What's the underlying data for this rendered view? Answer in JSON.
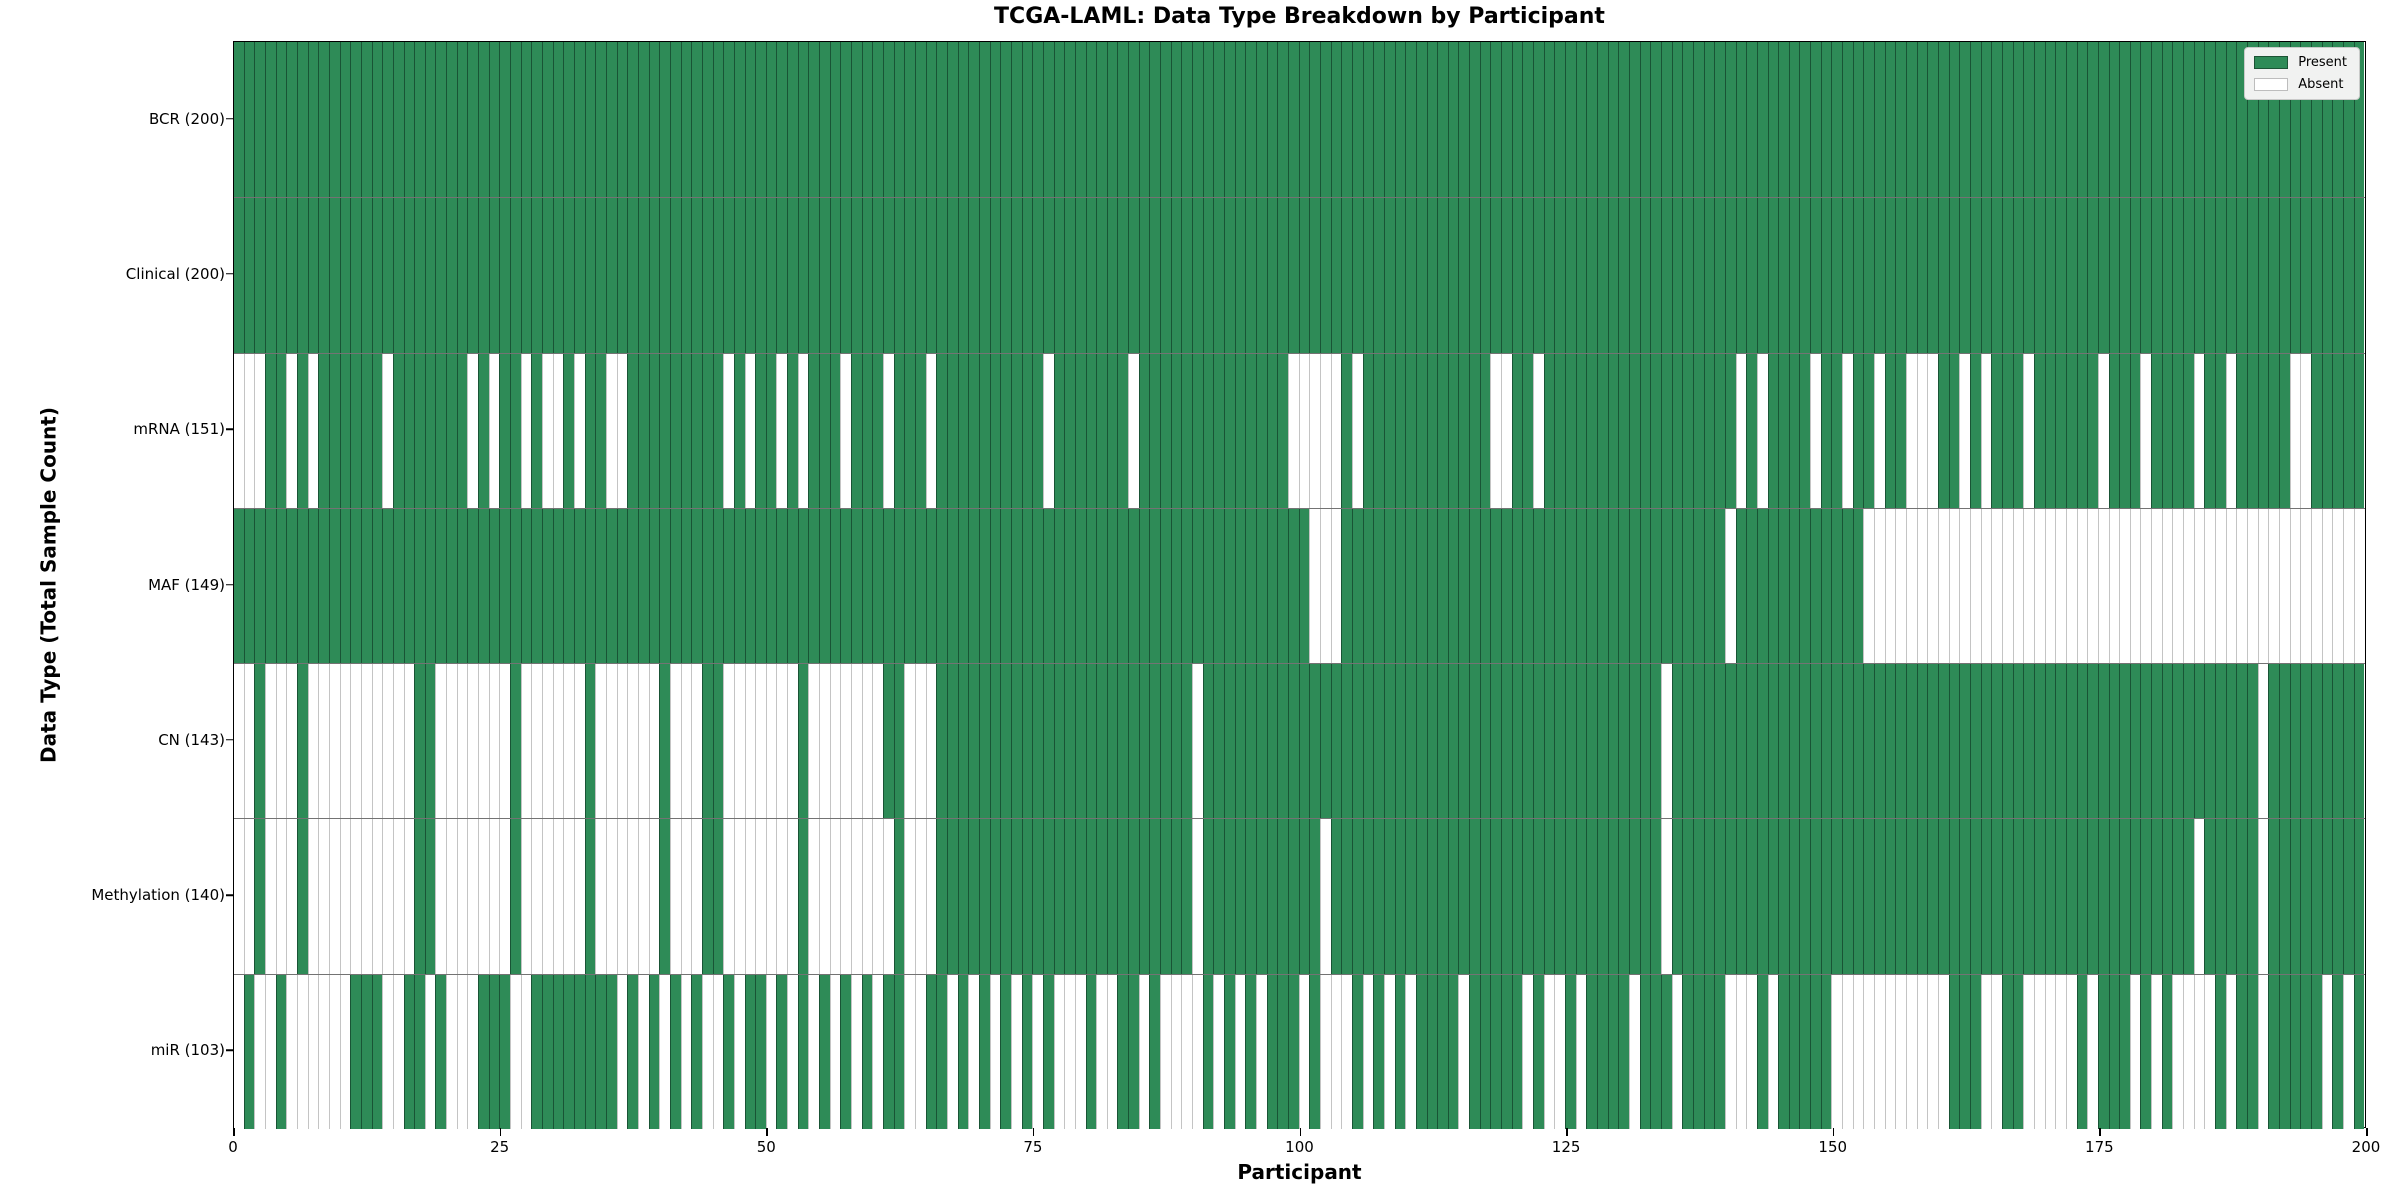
{
  "figure": {
    "title": "TCGA-LAML: Data Type Breakdown by Participant",
    "xlabel": "Participant",
    "ylabel": "Data Type (Total Sample Count)"
  },
  "legend": {
    "present_label": "Present",
    "absent_label": "Absent"
  },
  "colors": {
    "present": "#2e8b57",
    "absent": "#ffffff",
    "present_edge": "#14402a",
    "absent_edge": "#c4c4c4",
    "plot_border": "#000000",
    "legend_bg": "#f1f2f1"
  },
  "chart_data": {
    "type": "heatmap",
    "title": "TCGA-LAML: Data Type Breakdown by Participant",
    "xlabel": "Participant",
    "ylabel": "Data Type (Total Sample Count)",
    "x_range": [
      0,
      200
    ],
    "x_ticks": [
      0,
      25,
      50,
      75,
      100,
      125,
      150,
      175,
      200
    ],
    "n_participants": 200,
    "legend_entries": [
      "Present",
      "Absent"
    ],
    "legend_position": "upper right",
    "grid": false,
    "rows": [
      {
        "label": "BCR (200)",
        "name": "BCR",
        "present_count": 200,
        "absent_indices": []
      },
      {
        "label": "Clinical (200)",
        "name": "Clinical",
        "present_count": 200,
        "absent_indices": []
      },
      {
        "label": "mRNA (151)",
        "name": "mRNA",
        "present_count": 151,
        "absent_indices": [
          0,
          1,
          2,
          5,
          7,
          14,
          22,
          24,
          27,
          29,
          30,
          32,
          35,
          36,
          46,
          48,
          51,
          53,
          57,
          61,
          65,
          76,
          84,
          99,
          100,
          101,
          102,
          103,
          105,
          118,
          119,
          122,
          141,
          143,
          148,
          151,
          154,
          157,
          158,
          159,
          162,
          164,
          168,
          175,
          179,
          184,
          187,
          193,
          194
        ]
      },
      {
        "label": "MAF (149)",
        "name": "MAF",
        "present_count": 149,
        "absent_indices": [
          101,
          102,
          103,
          140,
          153,
          154,
          155,
          156,
          157,
          158,
          159,
          160,
          161,
          162,
          163,
          164,
          165,
          166,
          167,
          168,
          169,
          170,
          171,
          172,
          173,
          174,
          175,
          176,
          177,
          178,
          179,
          180,
          181,
          182,
          183,
          184,
          185,
          186,
          187,
          188,
          189,
          190,
          191,
          192,
          193,
          194,
          195,
          196,
          197,
          198,
          199
        ]
      },
      {
        "label": "CN (143)",
        "name": "CN",
        "present_count": 143,
        "absent_indices": [
          0,
          1,
          3,
          4,
          5,
          7,
          8,
          9,
          10,
          11,
          12,
          13,
          14,
          15,
          16,
          19,
          20,
          21,
          22,
          23,
          24,
          25,
          27,
          28,
          29,
          30,
          31,
          32,
          34,
          35,
          36,
          37,
          38,
          39,
          41,
          42,
          43,
          46,
          47,
          48,
          49,
          50,
          51,
          52,
          54,
          55,
          56,
          57,
          58,
          59,
          60,
          63,
          64,
          65,
          90,
          134,
          190
        ]
      },
      {
        "label": "Methylation (140)",
        "name": "Methylation",
        "present_count": 140,
        "absent_indices": [
          0,
          1,
          3,
          4,
          5,
          7,
          8,
          9,
          10,
          11,
          12,
          13,
          14,
          15,
          16,
          19,
          20,
          21,
          22,
          23,
          24,
          25,
          27,
          28,
          29,
          30,
          31,
          32,
          34,
          35,
          36,
          37,
          38,
          39,
          41,
          42,
          43,
          46,
          47,
          48,
          49,
          50,
          51,
          52,
          54,
          55,
          56,
          57,
          58,
          59,
          60,
          61,
          63,
          64,
          65,
          90,
          102,
          134,
          184,
          190
        ]
      },
      {
        "label": "miR (103)",
        "name": "miR",
        "present_count": 103,
        "absent_indices": [
          0,
          2,
          3,
          5,
          6,
          7,
          8,
          9,
          10,
          14,
          15,
          18,
          20,
          21,
          22,
          26,
          27,
          36,
          38,
          40,
          42,
          44,
          45,
          47,
          50,
          52,
          54,
          56,
          58,
          60,
          63,
          64,
          67,
          69,
          71,
          73,
          75,
          77,
          78,
          79,
          81,
          82,
          85,
          87,
          88,
          89,
          90,
          92,
          94,
          96,
          100,
          102,
          103,
          104,
          106,
          108,
          110,
          115,
          121,
          123,
          124,
          126,
          131,
          135,
          140,
          141,
          142,
          144,
          150,
          151,
          152,
          153,
          154,
          155,
          156,
          157,
          158,
          159,
          160,
          164,
          165,
          168,
          169,
          170,
          171,
          172,
          174,
          178,
          180,
          182,
          183,
          184,
          185,
          187,
          190,
          196,
          198
        ]
      }
    ]
  }
}
